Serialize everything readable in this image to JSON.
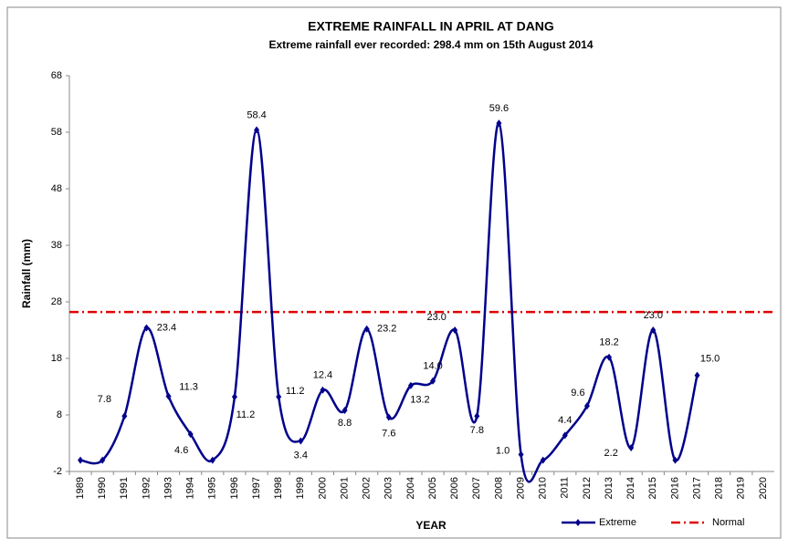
{
  "chart_data": {
    "type": "line",
    "title": "EXTREME RAINFALL IN APRIL AT DANG",
    "subtitle": "Extreme rainfall ever recorded: 298.4 mm on 15th August 2014",
    "x_label": "YEAR",
    "y_label": "Rainfall (mm)",
    "categories": [
      "1989",
      "1990",
      "1991",
      "1992",
      "1993",
      "1994",
      "1995",
      "1996",
      "1997",
      "1998",
      "1999",
      "2000",
      "2001",
      "2002",
      "2003",
      "2004",
      "2005",
      "2006",
      "2007",
      "2008",
      "2009",
      "2010",
      "2011",
      "2012",
      "2013",
      "2014",
      "2015",
      "2016",
      "2017",
      "2018",
      "2019",
      "2020"
    ],
    "series": [
      {
        "name": "Extreme",
        "color": "#00008b",
        "values": [
          0,
          0,
          7.8,
          23.4,
          11.3,
          4.6,
          0,
          11.2,
          58.4,
          11.2,
          3.4,
          12.4,
          8.8,
          23.2,
          7.6,
          13.2,
          14.0,
          23.0,
          7.8,
          59.6,
          1.0,
          0,
          4.4,
          9.6,
          18.2,
          2.2,
          23.0,
          0,
          15.0,
          null,
          null,
          null
        ],
        "value_labels": [
          null,
          null,
          "7.8",
          "23.4",
          "11.3",
          "4.6",
          null,
          "11.2",
          "58.4",
          "11.2",
          "3.4",
          "12.4",
          "8.8",
          "23.2",
          "7.6",
          "13.2",
          "14.0",
          "23.0",
          "7.8",
          "59.6",
          "1.0",
          null,
          "4.4",
          "9.6",
          "18.2",
          "2.2",
          "23.0",
          null,
          "15.0",
          null,
          null,
          null
        ]
      }
    ],
    "reference_line": {
      "name": "Normal",
      "color": "#e00000",
      "value": 26.2
    },
    "ylim": [
      -2,
      68
    ],
    "yticks": [
      -2,
      8,
      18,
      28,
      38,
      48,
      58,
      68
    ],
    "grid": false,
    "legend": "bottom-right"
  }
}
